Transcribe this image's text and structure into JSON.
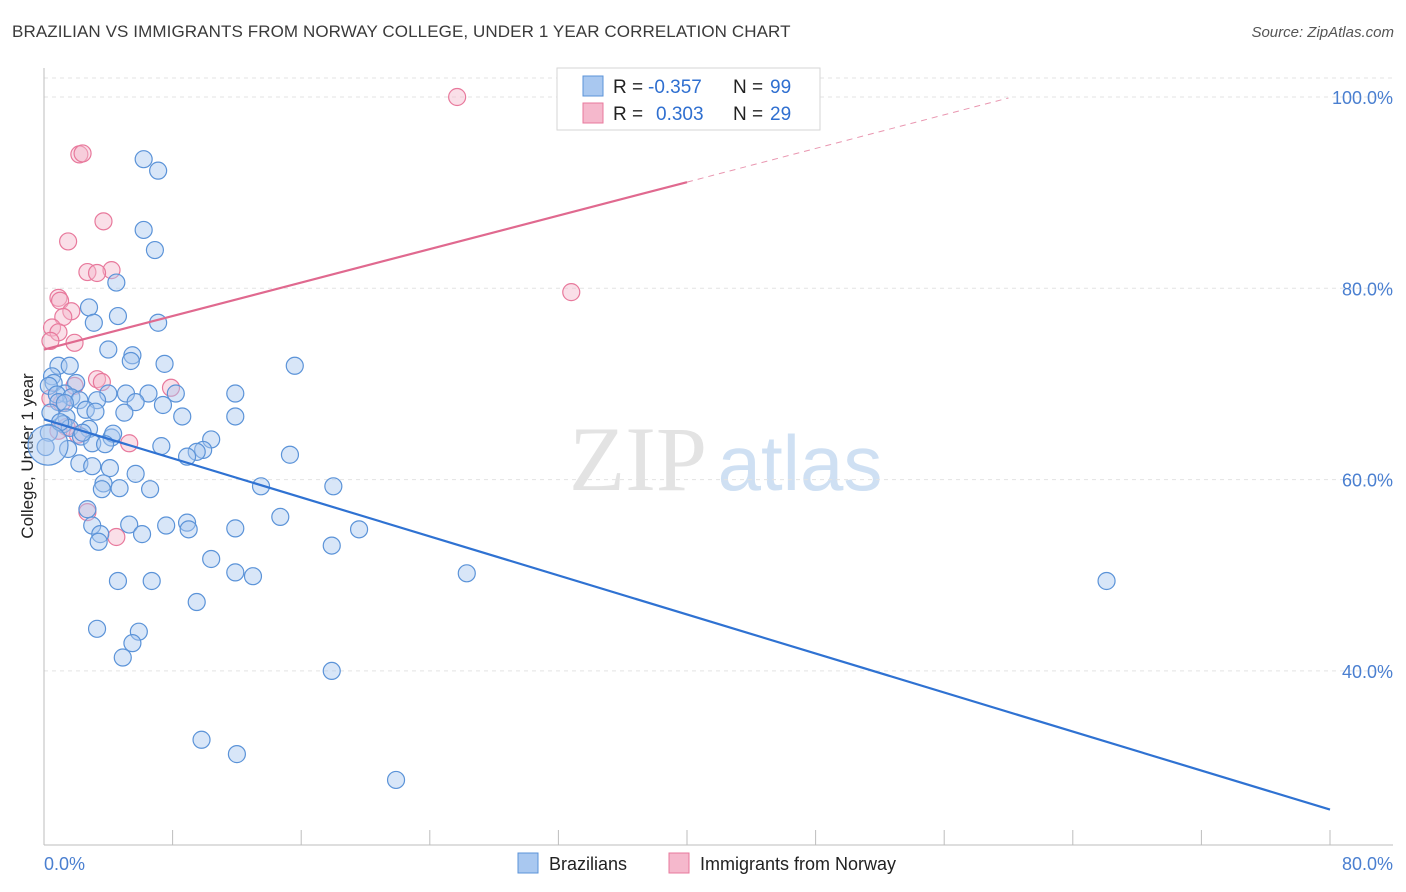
{
  "title": "BRAZILIAN VS IMMIGRANTS FROM NORWAY COLLEGE, UNDER 1 YEAR CORRELATION CHART",
  "source": "Source: ZipAtlas.com",
  "watermark": {
    "zip": "ZIP",
    "atlas": "atlas"
  },
  "colors": {
    "blue_fill": "#a9c8f0",
    "blue_stroke": "#5b93d8",
    "blue_line": "#2f72d2",
    "pink_fill": "#f5b8cc",
    "pink_stroke": "#e8799c",
    "pink_line": "#e0698f",
    "grid": "#e3e3e3",
    "axis_label": "#4a7fd0"
  },
  "legend": {
    "rows": [
      {
        "r_label": "R =",
        "r_value": "-0.357",
        "n_label": "N =",
        "n_value": "99"
      },
      {
        "r_label": "R =",
        "r_value": "0.303",
        "n_label": "N =",
        "n_value": "29"
      }
    ]
  },
  "bottom_legend": [
    "Brazilians",
    "Immigrants from Norway"
  ],
  "chart_data": {
    "type": "scatter",
    "title": "BRAZILIAN VS IMMIGRANTS FROM NORWAY COLLEGE, UNDER 1 YEAR CORRELATION CHART",
    "xlabel": "",
    "ylabel": "College, Under 1 year",
    "xlim": [
      0,
      80
    ],
    "ylim": [
      20,
      102
    ],
    "x_tick_labels": [
      "0.0%",
      "80.0%"
    ],
    "y_ticks": [
      40,
      60,
      80,
      100
    ],
    "y_tick_labels": [
      "40.0%",
      "60.0%",
      "80.0%",
      "100.0%"
    ],
    "series": [
      {
        "name": "Brazilians",
        "r": -0.357,
        "n": 99,
        "trend": {
          "x": [
            0,
            80
          ],
          "y": [
            66.3,
            25.5
          ]
        },
        "points": [
          [
            6.2,
            93.5
          ],
          [
            7.1,
            92.3
          ],
          [
            6.2,
            86.1
          ],
          [
            6.9,
            84.0
          ],
          [
            4.5,
            80.6
          ],
          [
            2.8,
            78.0
          ],
          [
            4.6,
            77.1
          ],
          [
            3.1,
            76.4
          ],
          [
            7.1,
            76.4
          ],
          [
            4.0,
            73.6
          ],
          [
            5.5,
            73.0
          ],
          [
            5.4,
            72.4
          ],
          [
            7.5,
            72.1
          ],
          [
            0.9,
            71.9
          ],
          [
            1.6,
            71.9
          ],
          [
            15.6,
            71.9
          ],
          [
            0.5,
            70.8
          ],
          [
            0.6,
            70.1
          ],
          [
            2.0,
            70.1
          ],
          [
            0.3,
            69.8
          ],
          [
            1.3,
            69.0
          ],
          [
            0.8,
            68.9
          ],
          [
            4.0,
            69.0
          ],
          [
            5.1,
            69.0
          ],
          [
            6.5,
            69.0
          ],
          [
            8.2,
            69.0
          ],
          [
            11.9,
            69.0
          ],
          [
            1.7,
            68.6
          ],
          [
            2.2,
            68.3
          ],
          [
            3.3,
            68.3
          ],
          [
            5.7,
            68.1
          ],
          [
            0.9,
            68.1
          ],
          [
            1.3,
            68.0
          ],
          [
            7.4,
            67.8
          ],
          [
            2.6,
            67.3
          ],
          [
            0.4,
            67.0
          ],
          [
            3.2,
            67.1
          ],
          [
            5.0,
            67.0
          ],
          [
            1.4,
            66.5
          ],
          [
            8.6,
            66.6
          ],
          [
            11.9,
            66.6
          ],
          [
            1.2,
            65.8
          ],
          [
            1.6,
            65.4
          ],
          [
            2.8,
            65.3
          ],
          [
            0.3,
            64.9
          ],
          [
            2.3,
            64.5
          ],
          [
            4.2,
            64.4
          ],
          [
            4.3,
            64.8
          ],
          [
            3.0,
            63.8
          ],
          [
            10.4,
            64.2
          ],
          [
            1.5,
            63.2
          ],
          [
            7.3,
            63.5
          ],
          [
            9.9,
            63.1
          ],
          [
            9.5,
            62.9
          ],
          [
            8.9,
            62.4
          ],
          [
            15.3,
            62.6
          ],
          [
            2.2,
            61.7
          ],
          [
            3.0,
            61.4
          ],
          [
            4.1,
            61.2
          ],
          [
            5.7,
            60.6
          ],
          [
            3.7,
            59.6
          ],
          [
            3.6,
            59.0
          ],
          [
            4.7,
            59.1
          ],
          [
            6.6,
            59.0
          ],
          [
            13.5,
            59.3
          ],
          [
            18.0,
            59.3
          ],
          [
            2.7,
            56.9
          ],
          [
            14.7,
            56.1
          ],
          [
            3.0,
            55.2
          ],
          [
            5.3,
            55.3
          ],
          [
            8.9,
            55.5
          ],
          [
            7.6,
            55.2
          ],
          [
            9.0,
            54.8
          ],
          [
            11.9,
            54.9
          ],
          [
            19.6,
            54.8
          ],
          [
            3.5,
            54.3
          ],
          [
            6.1,
            54.3
          ],
          [
            3.4,
            53.5
          ],
          [
            17.9,
            53.1
          ],
          [
            10.4,
            51.7
          ],
          [
            11.9,
            50.3
          ],
          [
            13.0,
            49.9
          ],
          [
            26.3,
            50.2
          ],
          [
            66.1,
            49.4
          ],
          [
            4.6,
            49.4
          ],
          [
            6.7,
            49.4
          ],
          [
            9.5,
            47.2
          ],
          [
            3.3,
            44.4
          ],
          [
            5.9,
            44.1
          ],
          [
            5.5,
            42.9
          ],
          [
            4.9,
            41.4
          ],
          [
            17.9,
            40.0
          ],
          [
            9.8,
            32.8
          ],
          [
            12.0,
            31.3
          ],
          [
            21.9,
            28.6
          ],
          [
            0.1,
            63.4
          ],
          [
            1.0,
            66.0
          ],
          [
            2.4,
            64.9
          ],
          [
            3.8,
            63.7
          ]
        ]
      },
      {
        "name": "Immigrants from Norway",
        "r": 0.303,
        "n": 29,
        "trend": {
          "x": [
            0,
            40
          ],
          "y": [
            73.6,
            91.1
          ]
        },
        "trend_dashed": {
          "x": [
            40,
            60
          ],
          "y": [
            91.1,
            99.9
          ]
        },
        "points": [
          [
            25.7,
            100.0
          ],
          [
            2.2,
            94.0
          ],
          [
            2.4,
            94.1
          ],
          [
            3.7,
            87.0
          ],
          [
            1.5,
            84.9
          ],
          [
            2.7,
            81.7
          ],
          [
            4.2,
            81.9
          ],
          [
            3.3,
            81.6
          ],
          [
            32.8,
            79.6
          ],
          [
            0.9,
            79.0
          ],
          [
            1.0,
            78.7
          ],
          [
            1.7,
            77.6
          ],
          [
            1.2,
            77.0
          ],
          [
            0.5,
            75.9
          ],
          [
            0.9,
            75.4
          ],
          [
            0.4,
            74.5
          ],
          [
            1.9,
            74.3
          ],
          [
            3.3,
            70.5
          ],
          [
            3.6,
            70.2
          ],
          [
            7.9,
            69.6
          ],
          [
            1.1,
            68.0
          ],
          [
            1.4,
            65.5
          ],
          [
            0.9,
            65.1
          ],
          [
            2.1,
            64.7
          ],
          [
            5.3,
            63.8
          ],
          [
            2.7,
            56.6
          ],
          [
            4.5,
            54.0
          ],
          [
            0.4,
            68.5
          ],
          [
            1.9,
            69.8
          ]
        ]
      }
    ]
  }
}
